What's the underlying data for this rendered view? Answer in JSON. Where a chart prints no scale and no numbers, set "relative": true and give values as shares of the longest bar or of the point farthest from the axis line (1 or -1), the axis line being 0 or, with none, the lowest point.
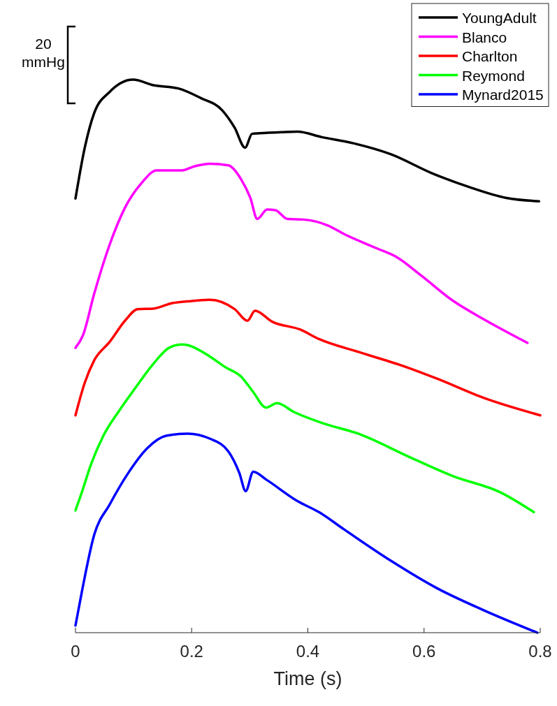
{
  "chart_data": {
    "type": "line",
    "relative": true,
    "xlabel": "Time (s)",
    "xlim": [
      0,
      0.8
    ],
    "xticks": [
      0,
      0.2,
      0.4,
      0.6,
      0.8
    ],
    "legend": "top right",
    "grid": false,
    "annotations": [
      "20 mmHg"
    ],
    "series": [
      {
        "name": "YoungAdult",
        "color": "#000000",
        "x": [
          0,
          0.016,
          0.032,
          0.059,
          0.099,
          0.134,
          0.177,
          0.215,
          0.253,
          0.274,
          0.292,
          0.304,
          0.317,
          0.355,
          0.382,
          0.424,
          0.478,
          0.543,
          0.613,
          0.677,
          0.742,
          0.798
        ],
        "values": [
          0.785,
          0.877,
          0.939,
          0.978,
          1.0,
          0.99,
          0.984,
          0.967,
          0.944,
          0.913,
          0.877,
          0.902,
          0.903,
          0.905,
          0.906,
          0.896,
          0.885,
          0.865,
          0.831,
          0.806,
          0.786,
          0.78
        ]
      },
      {
        "name": "Blanco",
        "color": "#ff00ff",
        "x": [
          0,
          0.013,
          0.032,
          0.059,
          0.086,
          0.113,
          0.14,
          0.183,
          0.204,
          0.231,
          0.263,
          0.285,
          0.301,
          0.313,
          0.33,
          0.344,
          0.365,
          0.392,
          0.435,
          0.462,
          0.516,
          0.553,
          0.596,
          0.65,
          0.704,
          0.778
        ],
        "values": [
          0.515,
          0.538,
          0.612,
          0.702,
          0.77,
          0.812,
          0.836,
          0.836,
          0.843,
          0.848,
          0.845,
          0.82,
          0.786,
          0.748,
          0.765,
          0.764,
          0.748,
          0.747,
          0.736,
          0.721,
          0.696,
          0.679,
          0.645,
          0.6,
          0.566,
          0.524
        ]
      },
      {
        "name": "Charlton",
        "color": "#ff0000",
        "x": [
          0,
          0.016,
          0.032,
          0.059,
          0.086,
          0.107,
          0.134,
          0.167,
          0.193,
          0.231,
          0.274,
          0.296,
          0.309,
          0.339,
          0.387,
          0.419,
          0.489,
          0.57,
          0.623,
          0.704,
          0.8
        ],
        "values": [
          0.393,
          0.452,
          0.492,
          0.526,
          0.565,
          0.585,
          0.586,
          0.596,
          0.599,
          0.602,
          0.585,
          0.564,
          0.582,
          0.562,
          0.548,
          0.531,
          0.507,
          0.48,
          0.459,
          0.424,
          0.393
        ]
      },
      {
        "name": "Reymond",
        "color": "#00ff00",
        "x": [
          0,
          0.011,
          0.027,
          0.048,
          0.075,
          0.102,
          0.134,
          0.161,
          0.183,
          0.193,
          0.226,
          0.258,
          0.285,
          0.306,
          0.328,
          0.347,
          0.376,
          0.425,
          0.489,
          0.57,
          0.65,
          0.731,
          0.789
        ],
        "values": [
          0.221,
          0.254,
          0.305,
          0.356,
          0.401,
          0.441,
          0.486,
          0.515,
          0.521,
          0.52,
          0.503,
          0.48,
          0.463,
          0.435,
          0.407,
          0.415,
          0.399,
          0.379,
          0.359,
          0.32,
          0.283,
          0.254,
          0.218
        ]
      },
      {
        "name": "Mynard2015",
        "color": "#0000ff",
        "x": [
          0,
          0.011,
          0.032,
          0.059,
          0.091,
          0.124,
          0.156,
          0.193,
          0.231,
          0.263,
          0.282,
          0.293,
          0.306,
          0.328,
          0.382,
          0.419,
          0.462,
          0.543,
          0.623,
          0.704,
          0.795
        ],
        "values": [
          0.013,
          0.074,
          0.176,
          0.232,
          0.289,
          0.334,
          0.356,
          0.36,
          0.351,
          0.328,
          0.289,
          0.256,
          0.291,
          0.277,
          0.238,
          0.218,
          0.187,
          0.13,
          0.08,
          0.04,
          0
        ]
      }
    ]
  }
}
